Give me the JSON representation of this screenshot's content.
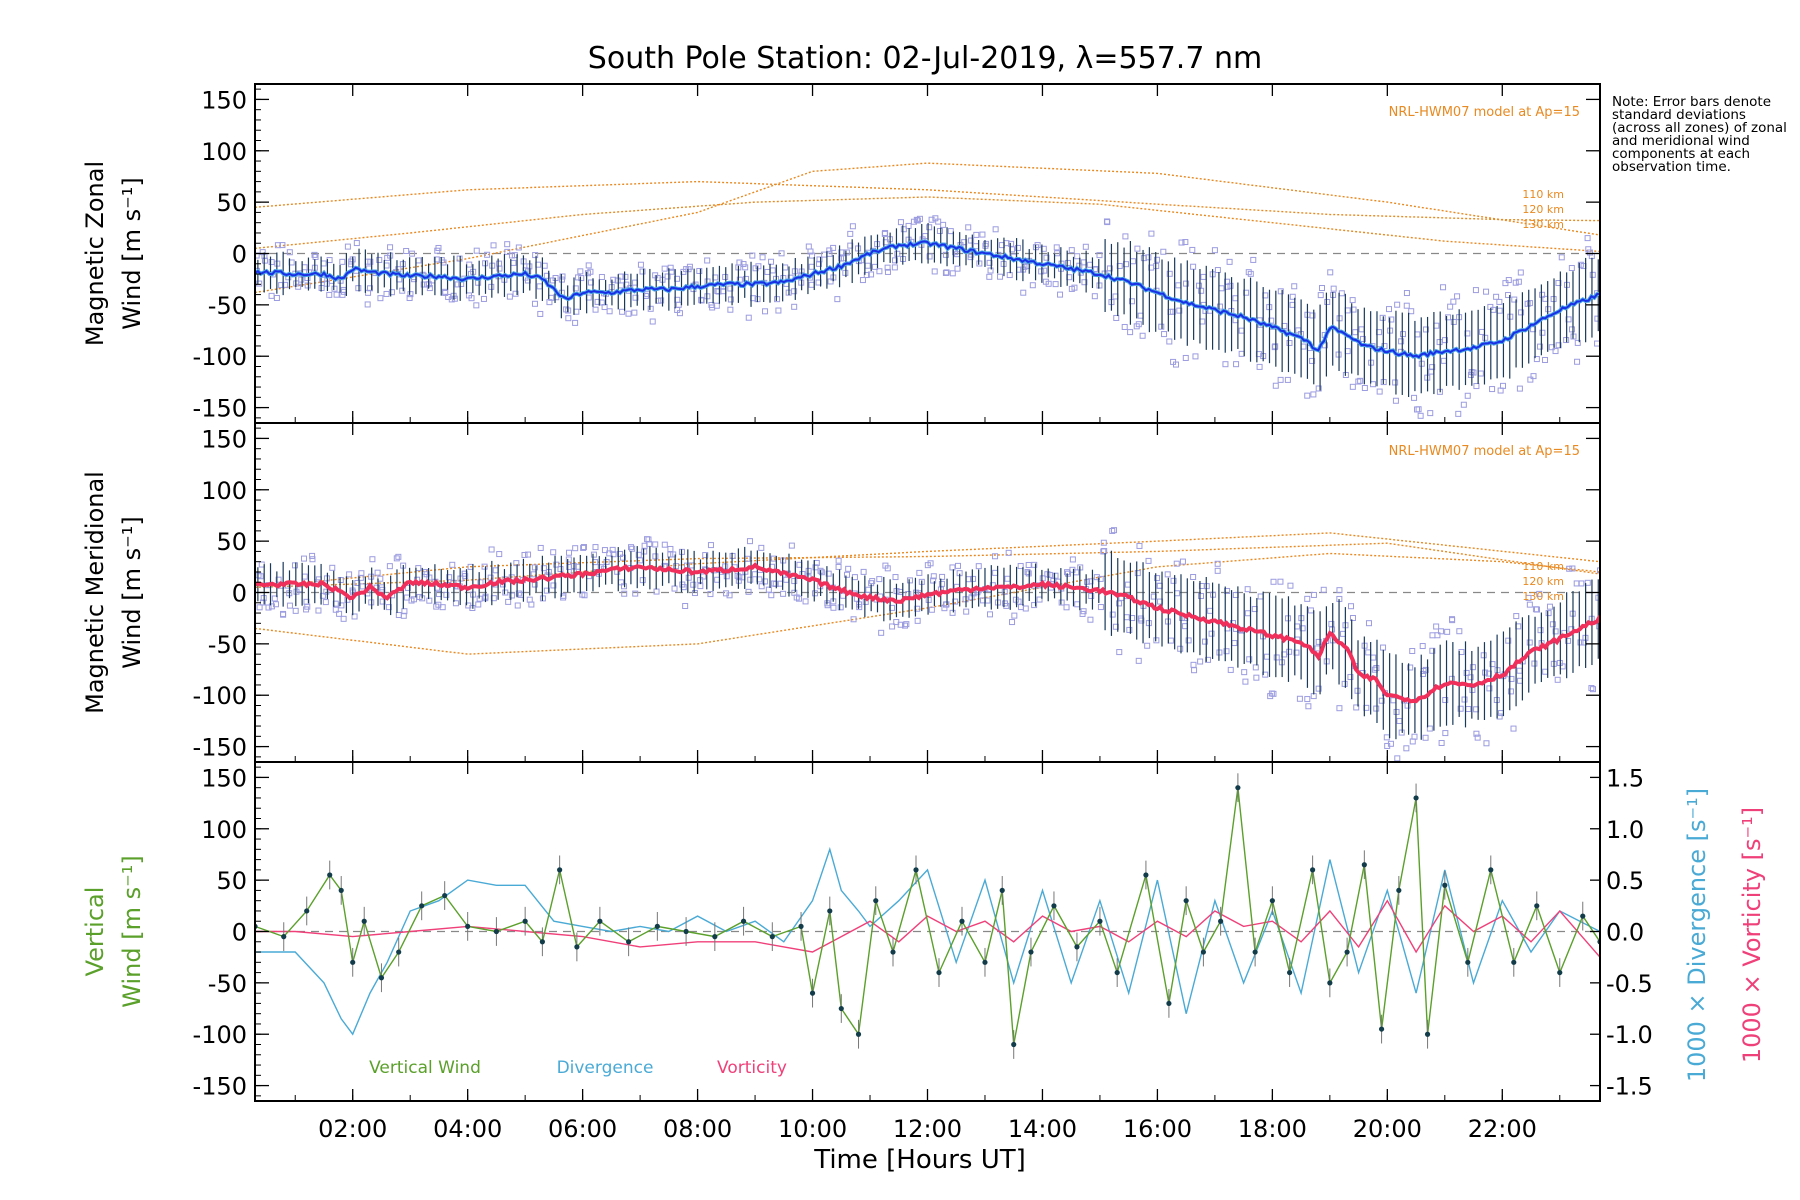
{
  "figure": {
    "title": "South Pole Station: 02-Jul-2019, λ=557.7 nm",
    "xlabel": "Time [Hours UT]",
    "note": "Note: Error bars denote standard deviations (across all zones) of zonal and meridional wind components at each observation time.",
    "model_label": "NRL-HWM07 model at Ap=15",
    "altitude_labels": [
      "110 km",
      "120 km",
      "130 km"
    ],
    "colors": {
      "zonal_mean": "#1a2ee6",
      "zonal_light": "#4aa6e6",
      "meridional_mean": "#f0305a",
      "model": "#e88a22",
      "scatter": "#9c9ce0",
      "errorbar": "#1a3a5a",
      "vertical": "#5aa02a",
      "divergence": "#4aaad6",
      "vorticity": "#f0407a"
    }
  },
  "chart_data": [
    {
      "type": "line",
      "panel": "zonal",
      "ylabel_line1": "Magnetic Zonal",
      "ylabel_line2": "Wind [m s⁻¹]",
      "xlim": [
        0.3,
        23.7
      ],
      "ylim": [
        -165,
        165
      ],
      "yticks": [
        150,
        100,
        50,
        0,
        -50,
        -100,
        -150
      ],
      "xticks": [
        "02:00",
        "04:00",
        "06:00",
        "08:00",
        "10:00",
        "12:00",
        "14:00",
        "16:00",
        "18:00",
        "20:00",
        "22:00"
      ],
      "xtick_hours": [
        2,
        4,
        6,
        8,
        10,
        12,
        14,
        16,
        18,
        20,
        22
      ],
      "mean_series": {
        "name": "Zonal wind (mean)",
        "x": [
          0.3,
          1.0,
          1.5,
          1.8,
          2.0,
          2.3,
          2.6,
          3.0,
          3.5,
          4.0,
          4.5,
          5.0,
          5.3,
          5.7,
          6.0,
          6.5,
          7.0,
          7.5,
          8.0,
          8.5,
          9.0,
          9.5,
          10.0,
          10.5,
          11.0,
          11.5,
          12.0,
          12.5,
          13.0,
          13.5,
          14.0,
          14.5,
          15.0,
          15.5,
          16.0,
          16.5,
          17.0,
          17.5,
          18.0,
          18.3,
          18.6,
          18.8,
          19.0,
          19.3,
          19.6,
          20.0,
          20.5,
          21.0,
          21.5,
          22.0,
          22.5,
          23.0,
          23.7
        ],
        "y": [
          -18,
          -20,
          -20,
          -25,
          -15,
          -18,
          -20,
          -22,
          -22,
          -25,
          -22,
          -20,
          -25,
          -45,
          -38,
          -38,
          -35,
          -35,
          -32,
          -30,
          -30,
          -28,
          -20,
          -12,
          0,
          8,
          10,
          5,
          0,
          -5,
          -10,
          -15,
          -20,
          -28,
          -38,
          -48,
          -55,
          -62,
          -72,
          -78,
          -85,
          -95,
          -72,
          -80,
          -90,
          -95,
          -100,
          -95,
          -92,
          -85,
          -70,
          -55,
          -40
        ]
      },
      "model_series": [
        {
          "name": "110 km",
          "x": [
            0.3,
            4,
            8,
            12,
            16,
            19,
            22,
            23.7
          ],
          "y": [
            45,
            62,
            70,
            62,
            48,
            38,
            33,
            32
          ]
        },
        {
          "name": "120 km",
          "x": [
            0.3,
            4,
            8,
            10,
            12,
            16,
            20,
            23.7
          ],
          "y": [
            -38,
            -5,
            40,
            80,
            88,
            78,
            50,
            18
          ]
        },
        {
          "name": "130 km",
          "x": [
            0.3,
            3,
            6,
            9,
            12,
            15,
            18,
            21,
            23.7
          ],
          "y": [
            5,
            20,
            38,
            50,
            55,
            48,
            30,
            12,
            2
          ]
        }
      ]
    },
    {
      "type": "line",
      "panel": "meridional",
      "ylabel_line1": "Magnetic Meridional",
      "ylabel_line2": "Wind [m s⁻¹]",
      "xlim": [
        0.3,
        23.7
      ],
      "ylim": [
        -165,
        165
      ],
      "yticks": [
        150,
        100,
        50,
        0,
        -50,
        -100,
        -150
      ],
      "mean_series": {
        "name": "Meridional wind (mean)",
        "x": [
          0.3,
          1.0,
          1.5,
          2.0,
          2.3,
          2.6,
          3.0,
          3.5,
          4.0,
          4.5,
          5.0,
          5.5,
          6.0,
          6.5,
          7.0,
          7.5,
          8.0,
          8.5,
          9.0,
          9.5,
          10.0,
          10.5,
          11.0,
          11.5,
          12.0,
          12.5,
          13.0,
          13.5,
          14.0,
          14.5,
          15.0,
          15.5,
          16.0,
          16.5,
          17.0,
          17.5,
          18.0,
          18.5,
          18.8,
          19.0,
          19.3,
          19.5,
          19.8,
          20.0,
          20.5,
          21.0,
          21.5,
          22.0,
          22.5,
          23.0,
          23.7
        ],
        "y": [
          8,
          8,
          8,
          -5,
          5,
          -5,
          10,
          8,
          5,
          10,
          12,
          15,
          18,
          22,
          25,
          22,
          20,
          22,
          25,
          18,
          12,
          2,
          -5,
          -8,
          -2,
          2,
          5,
          5,
          8,
          5,
          2,
          -5,
          -15,
          -22,
          -28,
          -35,
          -42,
          -48,
          -62,
          -40,
          -55,
          -80,
          -85,
          -100,
          -105,
          -88,
          -90,
          -80,
          -58,
          -45,
          -25
        ]
      },
      "model_series": [
        {
          "name": "110 km",
          "x": [
            0.3,
            4,
            8,
            12,
            16,
            19,
            22,
            23.7
          ],
          "y": [
            -35,
            -60,
            -50,
            -15,
            25,
            38,
            30,
            20
          ]
        },
        {
          "name": "120 km",
          "x": [
            0.3,
            4,
            8,
            12,
            16,
            20,
            23.7
          ],
          "y": [
            5,
            25,
            33,
            35,
            40,
            48,
            18
          ]
        },
        {
          "name": "130 km",
          "x": [
            0.3,
            4,
            8,
            12,
            16,
            19,
            23.7
          ],
          "y": [
            5,
            12,
            28,
            40,
            50,
            58,
            30
          ]
        }
      ]
    },
    {
      "type": "line",
      "panel": "vertical",
      "ylabel_line1": "Vertical",
      "ylabel_line2": "Wind [m s⁻¹]",
      "right_label_div": "1000 × Divergence [s⁻¹]",
      "right_label_vort": "1000 × Vorticity [s⁻¹]",
      "xlim": [
        0.3,
        23.7
      ],
      "ylim": [
        -165,
        165
      ],
      "yticks": [
        150,
        100,
        50,
        0,
        -50,
        -100,
        -150
      ],
      "right_ylim": [
        -1.65,
        1.65
      ],
      "right_yticks": [
        "1.5",
        "1.0",
        "0.5",
        "0.0",
        "-0.5",
        "-1.0",
        "-1.5"
      ],
      "right_ytick_values": [
        1.5,
        1.0,
        0.5,
        0.0,
        -0.5,
        -1.0,
        -1.5
      ],
      "legend": [
        "Vertical Wind",
        "Divergence",
        "Vorticity"
      ],
      "series": [
        {
          "name": "Vertical Wind",
          "x": [
            0.3,
            0.8,
            1.2,
            1.6,
            1.8,
            2.0,
            2.2,
            2.5,
            2.8,
            3.2,
            3.6,
            4.0,
            4.5,
            5.0,
            5.3,
            5.6,
            5.9,
            6.3,
            6.8,
            7.3,
            7.8,
            8.3,
            8.8,
            9.3,
            9.8,
            10.0,
            10.3,
            10.5,
            10.8,
            11.1,
            11.4,
            11.8,
            12.2,
            12.6,
            13.0,
            13.3,
            13.5,
            13.8,
            14.2,
            14.6,
            15.0,
            15.3,
            15.8,
            16.2,
            16.5,
            16.8,
            17.1,
            17.4,
            17.7,
            18.0,
            18.3,
            18.7,
            19.0,
            19.3,
            19.6,
            19.9,
            20.2,
            20.5,
            20.7,
            21.0,
            21.4,
            21.8,
            22.2,
            22.6,
            23.0,
            23.4,
            23.7
          ],
          "y": [
            5,
            -5,
            20,
            55,
            40,
            -30,
            10,
            -45,
            -20,
            25,
            35,
            5,
            0,
            10,
            -10,
            60,
            -15,
            10,
            -10,
            5,
            0,
            -5,
            10,
            -5,
            5,
            -60,
            20,
            -75,
            -100,
            30,
            -20,
            60,
            -40,
            10,
            -30,
            40,
            -110,
            -20,
            25,
            -15,
            10,
            -40,
            55,
            -70,
            30,
            -20,
            10,
            140,
            -20,
            30,
            -40,
            60,
            -50,
            -20,
            65,
            -95,
            40,
            130,
            -100,
            45,
            -30,
            60,
            -30,
            25,
            -40,
            15,
            -10
          ]
        },
        {
          "name": "Divergence",
          "x": [
            0.3,
            1.0,
            1.5,
            1.8,
            2.0,
            2.3,
            2.6,
            3.0,
            3.5,
            4.0,
            4.5,
            5.0,
            5.5,
            6.0,
            6.5,
            7.0,
            7.5,
            8.0,
            8.5,
            9.0,
            9.5,
            10.0,
            10.3,
            10.5,
            10.8,
            11.0,
            11.5,
            12.0,
            12.5,
            13.0,
            13.5,
            14.0,
            14.5,
            15.0,
            15.5,
            16.0,
            16.5,
            17.0,
            17.5,
            18.0,
            18.5,
            19.0,
            19.5,
            20.0,
            20.5,
            21.0,
            21.5,
            22.0,
            22.5,
            23.0,
            23.7
          ],
          "y": [
            -0.2,
            -0.2,
            -0.5,
            -0.85,
            -1.0,
            -0.6,
            -0.3,
            0.2,
            0.3,
            0.5,
            0.45,
            0.45,
            0.1,
            0.05,
            0.0,
            0.05,
            0.0,
            0.15,
            0.0,
            0.1,
            -0.1,
            0.3,
            0.8,
            0.4,
            0.2,
            0.05,
            0.3,
            0.6,
            -0.3,
            0.5,
            -0.5,
            0.4,
            -0.5,
            0.3,
            -0.6,
            0.5,
            -0.8,
            0.3,
            -0.5,
            0.2,
            -0.6,
            0.7,
            -0.4,
            0.4,
            -0.6,
            0.6,
            -0.5,
            0.3,
            -0.2,
            0.2,
            0.0
          ]
        },
        {
          "name": "Vorticity",
          "x": [
            0.3,
            1.0,
            2.0,
            3.0,
            4.0,
            5.0,
            6.0,
            7.0,
            8.0,
            9.0,
            10.0,
            10.5,
            11.0,
            11.5,
            12.0,
            12.5,
            13.0,
            13.5,
            14.0,
            14.5,
            15.0,
            15.5,
            16.0,
            16.5,
            17.0,
            17.5,
            18.0,
            18.5,
            19.0,
            19.5,
            20.0,
            20.5,
            21.0,
            21.5,
            22.0,
            22.5,
            23.0,
            23.7
          ],
          "y": [
            0.0,
            0.0,
            -0.05,
            0.0,
            0.05,
            0.0,
            -0.05,
            -0.15,
            -0.1,
            -0.1,
            -0.2,
            -0.05,
            0.1,
            -0.1,
            0.15,
            0.0,
            0.1,
            -0.1,
            0.15,
            0.0,
            0.05,
            -0.1,
            0.1,
            -0.05,
            0.2,
            0.05,
            0.1,
            -0.1,
            0.2,
            -0.15,
            0.3,
            -0.2,
            0.25,
            0.0,
            0.15,
            -0.1,
            0.2,
            -0.25
          ]
        }
      ]
    }
  ]
}
